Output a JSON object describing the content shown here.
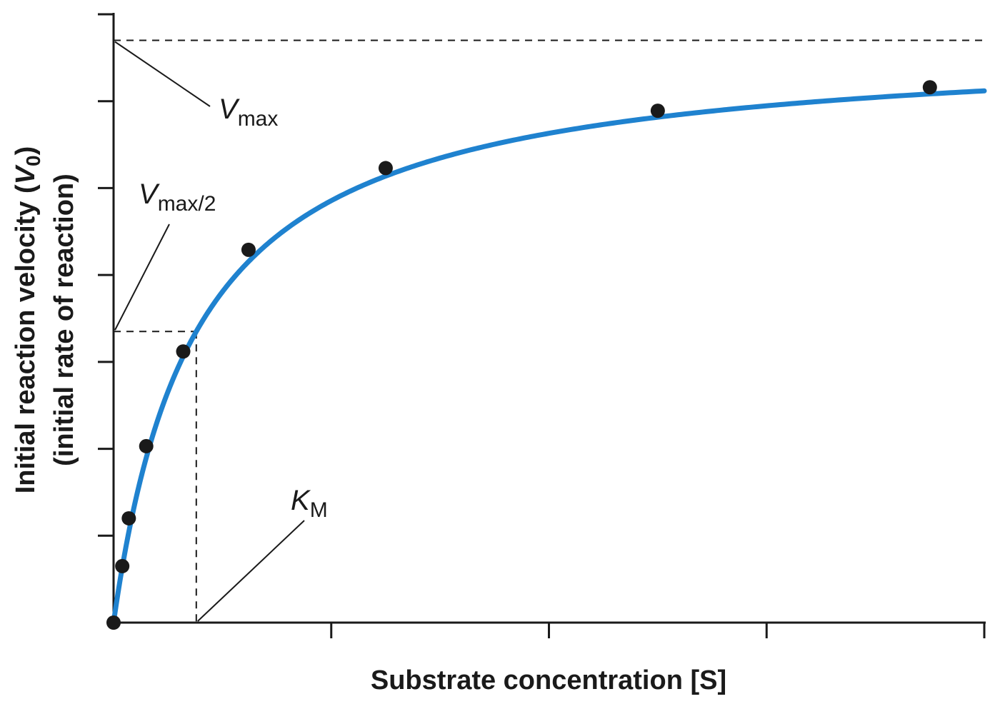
{
  "chart_data": {
    "type": "line",
    "title": "",
    "xlabel": "Substrate concentration [S]",
    "ylabel": {
      "line1_prefix": "Initial reaction velocity (",
      "line1_symbol": "V",
      "line1_subscript": "0",
      "line1_suffix": ")",
      "line2": "(initial  rate of reaction)"
    },
    "xlim": [
      0,
      4
    ],
    "ylim": [
      0,
      7
    ],
    "x_ticks": [
      0,
      1,
      2,
      3,
      4
    ],
    "y_ticks": [
      0,
      1,
      2,
      3,
      4,
      5,
      6,
      7
    ],
    "tick_labels_shown": false,
    "grid": false,
    "vmax": 6.7,
    "km": 0.38,
    "curve_color": "#1f82cf",
    "point_color": "#1a1a1a",
    "points": [
      {
        "x": 0.0,
        "y": 0.0
      },
      {
        "x": 0.04,
        "y": 0.65
      },
      {
        "x": 0.07,
        "y": 1.2
      },
      {
        "x": 0.15,
        "y": 2.03
      },
      {
        "x": 0.32,
        "y": 3.12
      },
      {
        "x": 0.62,
        "y": 4.29
      },
      {
        "x": 1.25,
        "y": 5.23
      },
      {
        "x": 2.5,
        "y": 5.89
      },
      {
        "x": 3.75,
        "y": 6.16
      }
    ],
    "annotations": {
      "vmax": {
        "main": "V",
        "sub": "max"
      },
      "vmax_half": {
        "main": "V",
        "sub": "max/2"
      },
      "km": {
        "main": "K",
        "sub": "M"
      }
    }
  }
}
